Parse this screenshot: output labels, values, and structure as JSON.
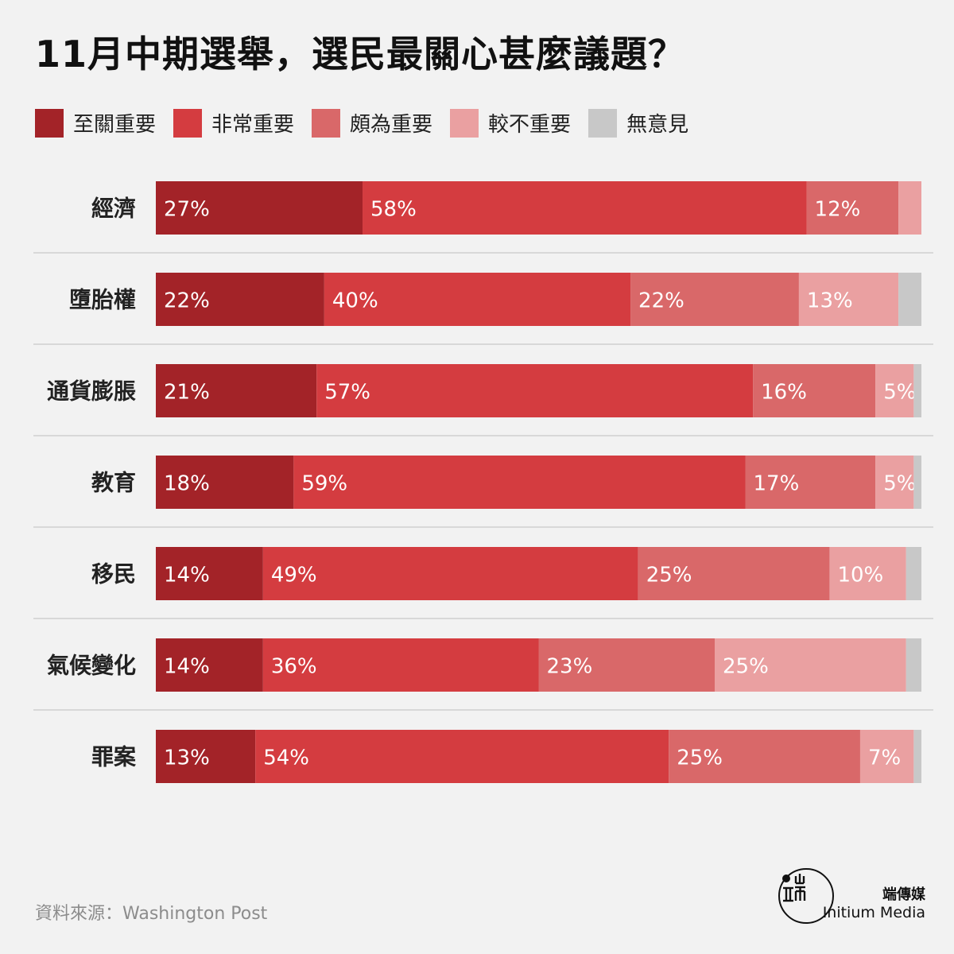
{
  "title": "11月中期選舉，選民最關心甚麼議題？",
  "source": "資料來源：Washington Post",
  "brand": {
    "name_cn": "端傳媒",
    "name_en": "Initium Media"
  },
  "chart_data": {
    "type": "bar",
    "orientation": "horizontal",
    "stacked": true,
    "categories": [
      "經濟",
      "墮胎權",
      "通貨膨脹",
      "教育",
      "移民",
      "氣候變化",
      "罪案"
    ],
    "series": [
      {
        "name": "至關重要",
        "color": "#a32328",
        "values": [
          27,
          22,
          21,
          18,
          14,
          14,
          13
        ],
        "labels": [
          "27%",
          "22%",
          "21%",
          "18%",
          "14%",
          "14%",
          "13%"
        ]
      },
      {
        "name": "非常重要",
        "color": "#d43c40",
        "values": [
          58,
          40,
          57,
          59,
          49,
          36,
          54
        ],
        "labels": [
          "58%",
          "40%",
          "57%",
          "59%",
          "49%",
          "36%",
          "54%"
        ]
      },
      {
        "name": "頗為重要",
        "color": "#d96869",
        "values": [
          12,
          22,
          16,
          17,
          25,
          23,
          25
        ],
        "labels": [
          "12%",
          "22%",
          "16%",
          "17%",
          "25%",
          "23%",
          "25%"
        ]
      },
      {
        "name": "較不重要",
        "color": "#eaa0a1",
        "values": [
          3,
          13,
          5,
          5,
          10,
          25,
          7
        ],
        "labels": [
          "",
          "13%",
          "5%",
          "5%",
          "10%",
          "25%",
          "7%"
        ]
      },
      {
        "name": "無意見",
        "color": "#c8c8c8",
        "values": [
          0,
          3,
          1,
          1,
          2,
          2,
          1
        ],
        "labels": [
          "",
          "",
          "",
          "",
          "",
          "",
          ""
        ]
      }
    ],
    "xlim": [
      0,
      100
    ],
    "legend_position": "top",
    "grid": false
  }
}
